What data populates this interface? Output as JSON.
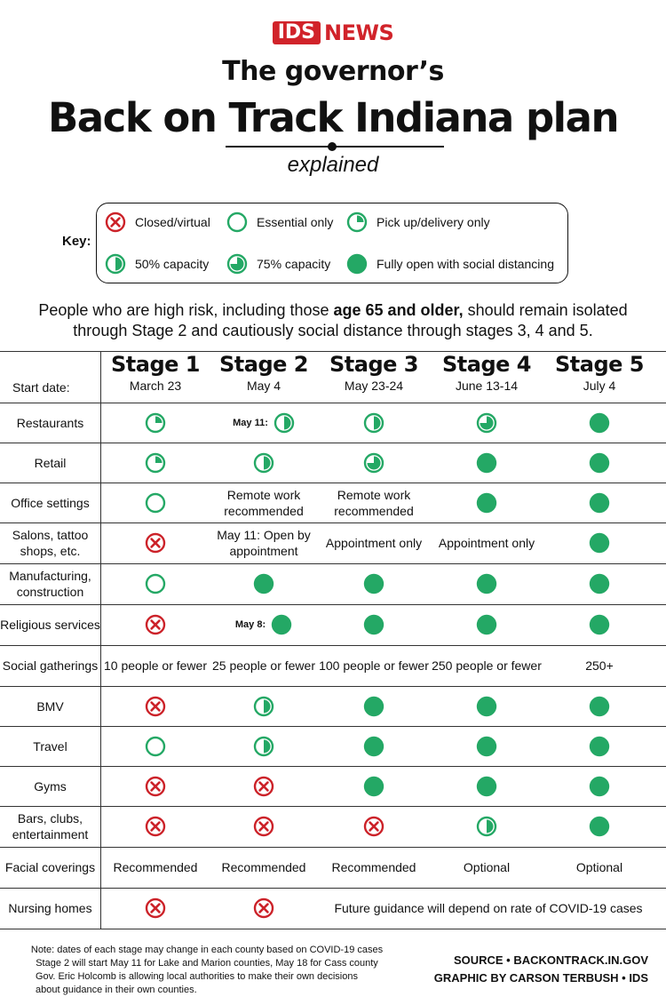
{
  "header": {
    "logo_ids": "IDS",
    "logo_news": "NEWS",
    "title_line1": "The governor’s",
    "title_line2": "Back on Track Indiana plan",
    "title_line3": "explained"
  },
  "key": {
    "label": "Key:",
    "items": [
      {
        "icon": "closed",
        "label": "Closed/virtual"
      },
      {
        "icon": "essential",
        "label": "Essential only"
      },
      {
        "icon": "pickup",
        "label": "Pick up/delivery only"
      },
      {
        "icon": "half",
        "label": "50% capacity"
      },
      {
        "icon": "threequarter",
        "label": "75% capacity"
      },
      {
        "icon": "full",
        "label": "Fully open with social distancing"
      }
    ]
  },
  "intro": {
    "part1": "People who are high risk, including those ",
    "bold": "age 65 and older,",
    "part2": " should remain isolated through Stage 2 and cautiously social distance through stages 3, 4 and 5."
  },
  "table": {
    "start_label": "Start date:",
    "stages": [
      {
        "name": "Stage 1",
        "date": "March 23"
      },
      {
        "name": "Stage 2",
        "date": "May 4"
      },
      {
        "name": "Stage 3",
        "date": "May 23-24"
      },
      {
        "name": "Stage 4",
        "date": "June 13-14"
      },
      {
        "name": "Stage 5",
        "date": "July 4"
      }
    ],
    "rows": [
      {
        "label": "Restaurants",
        "cells": [
          {
            "icon": "pickup"
          },
          {
            "note": "May 11:",
            "icon": "half"
          },
          {
            "icon": "half"
          },
          {
            "icon": "threequarter"
          },
          {
            "icon": "full"
          }
        ]
      },
      {
        "label": "Retail",
        "cells": [
          {
            "icon": "pickup"
          },
          {
            "icon": "half"
          },
          {
            "icon": "threequarter"
          },
          {
            "icon": "full"
          },
          {
            "icon": "full"
          }
        ]
      },
      {
        "label": "Office settings",
        "cells": [
          {
            "icon": "essential"
          },
          {
            "text": "Remote work recommended"
          },
          {
            "text": "Remote work recommended"
          },
          {
            "icon": "full"
          },
          {
            "icon": "full"
          }
        ]
      },
      {
        "label": "Salons, tattoo shops, etc.",
        "cells": [
          {
            "icon": "closed"
          },
          {
            "text": "May 11: Open by appointment"
          },
          {
            "text": "Appointment only"
          },
          {
            "text": "Appointment only"
          },
          {
            "icon": "full"
          }
        ]
      },
      {
        "label": "Manufacturing, construction",
        "cells": [
          {
            "icon": "essential"
          },
          {
            "icon": "full"
          },
          {
            "icon": "full"
          },
          {
            "icon": "full"
          },
          {
            "icon": "full"
          }
        ]
      },
      {
        "label": "Religious services",
        "cells": [
          {
            "icon": "closed"
          },
          {
            "note": "May 8:",
            "icon": "full"
          },
          {
            "icon": "full"
          },
          {
            "icon": "full"
          },
          {
            "icon": "full"
          }
        ]
      },
      {
        "label": "Social gatherings",
        "cells": [
          {
            "text": "10 people or fewer"
          },
          {
            "text": "25 people or fewer"
          },
          {
            "text": "100 people or fewer"
          },
          {
            "text": "250 people or fewer"
          },
          {
            "text": "250+"
          }
        ]
      },
      {
        "label": "BMV",
        "cells": [
          {
            "icon": "closed"
          },
          {
            "icon": "half"
          },
          {
            "icon": "full"
          },
          {
            "icon": "full"
          },
          {
            "icon": "full"
          }
        ]
      },
      {
        "label": "Travel",
        "cells": [
          {
            "icon": "essential"
          },
          {
            "icon": "half"
          },
          {
            "icon": "full"
          },
          {
            "icon": "full"
          },
          {
            "icon": "full"
          }
        ]
      },
      {
        "label": "Gyms",
        "cells": [
          {
            "icon": "closed"
          },
          {
            "icon": "closed"
          },
          {
            "icon": "full"
          },
          {
            "icon": "full"
          },
          {
            "icon": "full"
          }
        ]
      },
      {
        "label": "Bars, clubs, entertainment",
        "cells": [
          {
            "icon": "closed"
          },
          {
            "icon": "closed"
          },
          {
            "icon": "closed"
          },
          {
            "icon": "half"
          },
          {
            "icon": "full"
          }
        ]
      },
      {
        "label": "Facial coverings",
        "cells": [
          {
            "text": "Recommended"
          },
          {
            "text": "Recommended"
          },
          {
            "text": "Recommended"
          },
          {
            "text": "Optional"
          },
          {
            "text": "Optional"
          }
        ]
      },
      {
        "label": "Nursing homes",
        "cells": [
          {
            "icon": "closed"
          },
          {
            "icon": "closed"
          }
        ],
        "span_text": "Future guidance will depend on rate of COVID-19 cases"
      }
    ]
  },
  "footer": {
    "note1": "Note: dates of each stage may change in each county based on COVID-19 cases",
    "note2": "Stage 2 will start May 11 for Lake and Marion counties, May 18 for Cass county",
    "note3": "Gov. Eric Holcomb is allowing local authorities to make their own decisions about guidance in their own counties.",
    "source": "SOURCE • BACKONTRACK.IN.GOV",
    "credit": "GRAPHIC BY CARSON TERBUSH • IDS"
  },
  "colors": {
    "green": "#24a865",
    "red": "#cc2229",
    "brand": "#d1232a"
  }
}
